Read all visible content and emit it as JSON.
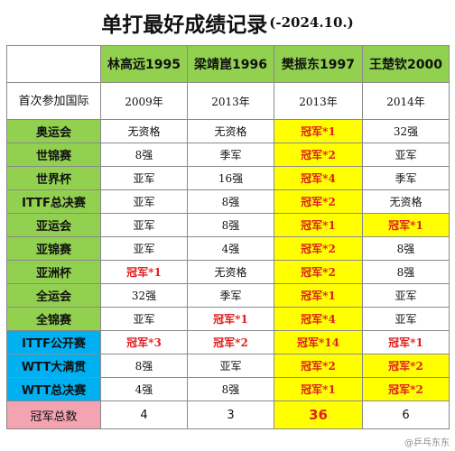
{
  "title": {
    "main": "单打最好成绩记录",
    "sub": "(-2024.10.)"
  },
  "players": [
    "林高远1995",
    "梁靖崑1996",
    "樊振东1997",
    "王楚钦2000"
  ],
  "debut": {
    "label": "首次参加国际",
    "values": [
      "2009年",
      "2013年",
      "2013年",
      "2014年"
    ]
  },
  "rows": [
    {
      "label": "奥运会",
      "style": "green",
      "cells": [
        {
          "t": "无资格"
        },
        {
          "t": "无资格"
        },
        {
          "t": "冠军*1",
          "c": true,
          "y": true
        },
        {
          "t": "32强"
        }
      ]
    },
    {
      "label": "世锦赛",
      "style": "green",
      "cells": [
        {
          "t": "8强"
        },
        {
          "t": "季军"
        },
        {
          "t": "冠军*2",
          "c": true,
          "y": true
        },
        {
          "t": "亚军"
        }
      ]
    },
    {
      "label": "世界杯",
      "style": "green",
      "cells": [
        {
          "t": "亚军"
        },
        {
          "t": "16强"
        },
        {
          "t": "冠军*4",
          "c": true,
          "y": true
        },
        {
          "t": "季军"
        }
      ]
    },
    {
      "label": "ITTF总决赛",
      "style": "green",
      "cells": [
        {
          "t": "亚军"
        },
        {
          "t": "8强"
        },
        {
          "t": "冠军*2",
          "c": true,
          "y": true
        },
        {
          "t": "无资格"
        }
      ]
    },
    {
      "label": "亚运会",
      "style": "green",
      "cells": [
        {
          "t": "亚军"
        },
        {
          "t": "8强"
        },
        {
          "t": "冠军*1",
          "c": true,
          "y": true
        },
        {
          "t": "冠军*1",
          "c": true,
          "y": true
        }
      ]
    },
    {
      "label": "亚锦赛",
      "style": "green",
      "cells": [
        {
          "t": "亚军"
        },
        {
          "t": "4强"
        },
        {
          "t": "冠军*2",
          "c": true,
          "y": true
        },
        {
          "t": "8强"
        }
      ]
    },
    {
      "label": "亚洲杯",
      "style": "green",
      "cells": [
        {
          "t": "冠军*1",
          "c": true
        },
        {
          "t": "无资格"
        },
        {
          "t": "冠军*2",
          "c": true,
          "y": true
        },
        {
          "t": "8强"
        }
      ]
    },
    {
      "label": "全运会",
      "style": "green",
      "cells": [
        {
          "t": "32强"
        },
        {
          "t": "季军"
        },
        {
          "t": "冠军*1",
          "c": true,
          "y": true
        },
        {
          "t": "亚军"
        }
      ]
    },
    {
      "label": "全锦赛",
      "style": "green",
      "cells": [
        {
          "t": "亚军"
        },
        {
          "t": "冠军*1",
          "c": true
        },
        {
          "t": "冠军*4",
          "c": true,
          "y": true
        },
        {
          "t": "亚军"
        }
      ]
    },
    {
      "label": "ITTF公开赛",
      "style": "blue",
      "cells": [
        {
          "t": "冠军*3",
          "c": true
        },
        {
          "t": "冠军*2",
          "c": true
        },
        {
          "t": "冠军*14",
          "c": true,
          "y": true
        },
        {
          "t": "冠军*1",
          "c": true
        }
      ]
    },
    {
      "label": "WTT大满贯",
      "style": "blue",
      "cells": [
        {
          "t": "8强"
        },
        {
          "t": "亚军"
        },
        {
          "t": "冠军*2",
          "c": true,
          "y": true
        },
        {
          "t": "冠军*2",
          "c": true,
          "y": true
        }
      ]
    },
    {
      "label": "WTT总决赛",
      "style": "blue",
      "cells": [
        {
          "t": "4强"
        },
        {
          "t": "8强"
        },
        {
          "t": "冠军*1",
          "c": true,
          "y": true
        },
        {
          "t": "冠军*2",
          "c": true,
          "y": true
        }
      ]
    }
  ],
  "total": {
    "label": "冠军总数",
    "values": [
      "4",
      "3",
      "36",
      "6"
    ],
    "highlight_index": 2
  },
  "colors": {
    "green": "#92d050",
    "blue": "#00b0f0",
    "pink": "#f4a3b0",
    "yellow": "#ffff00",
    "champion_red": "#e02020"
  },
  "watermark": "@乒乓东东"
}
